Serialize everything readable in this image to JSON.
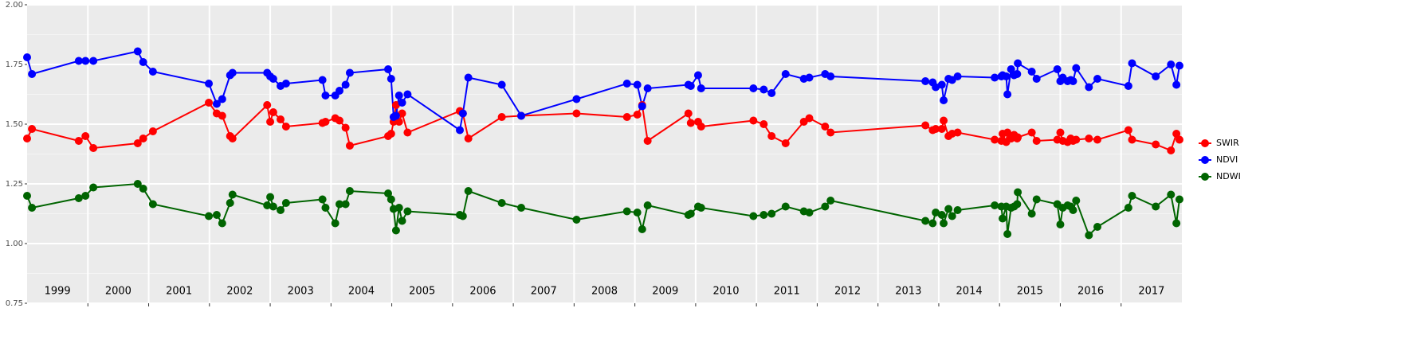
{
  "chart_data": {
    "type": "line",
    "x": [
      1999.0,
      1999.08,
      1999.85,
      1999.96,
      2000.09,
      2000.82,
      2000.91,
      2001.07,
      2001.99,
      2002.12,
      2002.21,
      2002.34,
      2002.38,
      2002.95,
      2003.0,
      2003.05,
      2003.17,
      2003.26,
      2003.86,
      2003.91,
      2004.07,
      2004.14,
      2004.24,
      2004.31,
      2004.94,
      2004.99,
      2005.03,
      2005.07,
      2005.12,
      2005.17,
      2005.26,
      2006.12,
      2006.17,
      2006.26,
      2006.81,
      2007.13,
      2008.04,
      2008.87,
      2009.04,
      2009.12,
      2009.21,
      2009.88,
      2009.92,
      2010.04,
      2010.09,
      2010.95,
      2011.12,
      2011.25,
      2011.48,
      2011.78,
      2011.87,
      2012.13,
      2012.22,
      2013.78,
      2013.9,
      2013.95,
      2014.05,
      2014.08,
      2014.16,
      2014.22,
      2014.31,
      2014.92,
      2015.03,
      2015.05,
      2015.11,
      2015.13,
      2015.19,
      2015.24,
      2015.29,
      2015.3,
      2015.53,
      2015.61,
      2015.95,
      2016.0,
      2016.04,
      2016.12,
      2016.17,
      2016.21,
      2016.26,
      2016.47,
      2016.61,
      2017.12,
      2017.18,
      2017.57,
      2017.82,
      2017.91,
      2017.96
    ],
    "series": [
      {
        "name": "SWIR",
        "color": "#ff0000",
        "values": [
          1.44,
          1.48,
          1.43,
          1.45,
          1.4,
          1.42,
          1.44,
          1.47,
          1.59,
          1.545,
          1.535,
          1.45,
          1.44,
          1.58,
          1.51,
          1.55,
          1.52,
          1.49,
          1.505,
          1.51,
          1.525,
          1.515,
          1.485,
          1.41,
          1.45,
          1.46,
          1.51,
          1.58,
          1.51,
          1.545,
          1.465,
          1.555,
          1.545,
          1.44,
          1.53,
          1.535,
          1.545,
          1.53,
          1.54,
          1.58,
          1.43,
          1.545,
          1.505,
          1.51,
          1.49,
          1.515,
          1.5,
          1.45,
          1.42,
          1.51,
          1.525,
          1.49,
          1.465,
          1.495,
          1.475,
          1.48,
          1.48,
          1.515,
          1.45,
          1.46,
          1.465,
          1.435,
          1.43,
          1.46,
          1.425,
          1.465,
          1.44,
          1.455,
          1.44,
          1.445,
          1.465,
          1.43,
          1.435,
          1.465,
          1.43,
          1.425,
          1.44,
          1.43,
          1.435,
          1.44,
          1.435,
          1.475,
          1.435,
          1.415,
          1.39,
          1.46,
          1.435
        ]
      },
      {
        "name": "NDVI",
        "color": "#0000ff",
        "values": [
          1.78,
          1.71,
          1.765,
          1.765,
          1.765,
          1.805,
          1.76,
          1.72,
          1.67,
          1.585,
          1.605,
          1.705,
          1.715,
          1.715,
          1.7,
          1.69,
          1.66,
          1.67,
          1.685,
          1.62,
          1.62,
          1.64,
          1.665,
          1.715,
          1.73,
          1.69,
          1.53,
          1.535,
          1.62,
          1.59,
          1.625,
          1.475,
          1.545,
          1.695,
          1.665,
          1.535,
          1.605,
          1.67,
          1.665,
          1.575,
          1.65,
          1.665,
          1.66,
          1.705,
          1.65,
          1.65,
          1.645,
          1.63,
          1.71,
          1.69,
          1.695,
          1.71,
          1.7,
          1.68,
          1.675,
          1.655,
          1.665,
          1.6,
          1.69,
          1.685,
          1.7,
          1.695,
          1.7,
          1.705,
          1.7,
          1.625,
          1.73,
          1.705,
          1.71,
          1.755,
          1.72,
          1.69,
          1.73,
          1.68,
          1.695,
          1.68,
          1.685,
          1.68,
          1.735,
          1.655,
          1.69,
          1.66,
          1.755,
          1.7,
          1.75,
          1.665,
          1.745
        ]
      },
      {
        "name": "NDWI",
        "color": "#006400",
        "values": [
          1.2,
          1.15,
          1.19,
          1.2,
          1.235,
          1.25,
          1.23,
          1.165,
          1.115,
          1.12,
          1.085,
          1.17,
          1.205,
          1.16,
          1.195,
          1.155,
          1.14,
          1.17,
          1.185,
          1.15,
          1.085,
          1.165,
          1.165,
          1.22,
          1.21,
          1.185,
          1.145,
          1.055,
          1.15,
          1.095,
          1.135,
          1.12,
          1.115,
          1.22,
          1.17,
          1.15,
          1.1,
          1.135,
          1.13,
          1.06,
          1.16,
          1.12,
          1.125,
          1.155,
          1.15,
          1.115,
          1.12,
          1.125,
          1.155,
          1.135,
          1.13,
          1.155,
          1.18,
          1.095,
          1.085,
          1.13,
          1.12,
          1.085,
          1.145,
          1.115,
          1.14,
          1.16,
          1.155,
          1.105,
          1.155,
          1.04,
          1.15,
          1.155,
          1.165,
          1.215,
          1.125,
          1.185,
          1.165,
          1.08,
          1.15,
          1.16,
          1.155,
          1.14,
          1.18,
          1.035,
          1.07,
          1.15,
          1.2,
          1.155,
          1.205,
          1.085,
          1.185
        ]
      }
    ],
    "xlim": [
      1999,
      2018
    ],
    "xticks": [
      2000,
      2001,
      2002,
      2003,
      2004,
      2005,
      2006,
      2007,
      2008,
      2009,
      2010,
      2011,
      2012,
      2013,
      2014,
      2015,
      2016,
      2017
    ],
    "ylim": [
      0.75,
      2.0
    ],
    "yticks": [
      {
        "value": 0.75,
        "label": "0.75"
      },
      {
        "value": 1,
        "label": "1.00"
      },
      {
        "value": 1.25,
        "label": "1.25"
      },
      {
        "value": 1.5,
        "label": "1.50"
      },
      {
        "value": 1.75,
        "label": "1.75"
      },
      {
        "value": 2,
        "label": "2.00"
      }
    ],
    "grid": true,
    "legend": "right",
    "annotations": [
      {
        "text": "1999",
        "x": 1999.5,
        "y": 0.8
      },
      {
        "text": "2000",
        "x": 2000.5,
        "y": 0.8
      },
      {
        "text": "2001",
        "x": 2001.5,
        "y": 0.8
      },
      {
        "text": "2002",
        "x": 2002.5,
        "y": 0.8
      },
      {
        "text": "2003",
        "x": 2003.5,
        "y": 0.8
      },
      {
        "text": "2004",
        "x": 2004.5,
        "y": 0.8
      },
      {
        "text": "2005",
        "x": 2005.5,
        "y": 0.8
      },
      {
        "text": "2006",
        "x": 2006.5,
        "y": 0.8
      },
      {
        "text": "2007",
        "x": 2007.5,
        "y": 0.8
      },
      {
        "text": "2008",
        "x": 2008.5,
        "y": 0.8
      },
      {
        "text": "2009",
        "x": 2009.5,
        "y": 0.8
      },
      {
        "text": "2010",
        "x": 2010.5,
        "y": 0.8
      },
      {
        "text": "2011",
        "x": 2011.5,
        "y": 0.8
      },
      {
        "text": "2012",
        "x": 2012.5,
        "y": 0.8
      },
      {
        "text": "2013",
        "x": 2013.5,
        "y": 0.8
      },
      {
        "text": "2014",
        "x": 2014.5,
        "y": 0.8
      },
      {
        "text": "2015",
        "x": 2015.5,
        "y": 0.8
      },
      {
        "text": "2016",
        "x": 2016.5,
        "y": 0.8
      },
      {
        "text": "2017",
        "x": 2017.5,
        "y": 0.8
      }
    ]
  }
}
